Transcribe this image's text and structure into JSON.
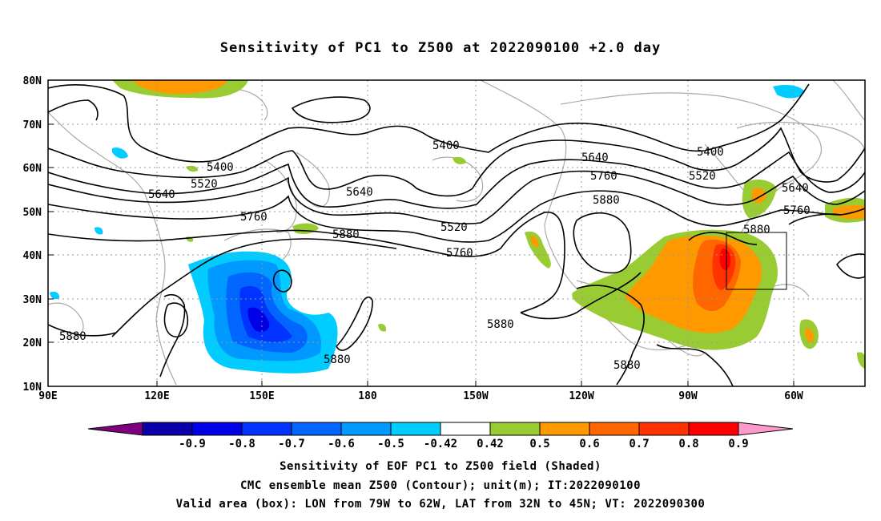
{
  "title": "Sensitivity of PC1 to Z500 at 2022090100 +2.0 day",
  "lat_labels": [
    "80N",
    "70N",
    "60N",
    "50N",
    "40N",
    "30N",
    "20N",
    "10N"
  ],
  "lon_labels": [
    "90E",
    "120E",
    "150E",
    "180",
    "150W",
    "120W",
    "90W",
    "60W"
  ],
  "contour_labels": [
    "5400",
    "5400",
    "5400",
    "5520",
    "5520",
    "5520",
    "5640",
    "5640",
    "5640",
    "5640",
    "5760",
    "5760",
    "5760",
    "5760",
    "5880",
    "5880",
    "5880",
    "5880",
    "5880",
    "5880",
    "5880"
  ],
  "colorbar": {
    "labels": [
      "-0.9",
      "-0.8",
      "-0.7",
      "-0.6",
      "-0.5",
      "-0.42",
      "0.42",
      "0.5",
      "0.6",
      "0.7",
      "0.8",
      "0.9"
    ],
    "colors": [
      "#7f007f",
      "#0a00aa",
      "#0000e6",
      "#0033ff",
      "#0066ff",
      "#0099ff",
      "#00ccff",
      "#ffffff",
      "#99cc33",
      "#ff9900",
      "#ff6600",
      "#ff3300",
      "#ff0000",
      "#ff99cc"
    ]
  },
  "footer": {
    "line1": "Sensitivity of EOF PC1 to Z500 field (Shaded)",
    "line2": "CMC ensemble mean Z500 (Contour); unit(m); IT:2022090100",
    "line3": "Valid area (box): LON from 79W to 62W, LAT from 32N to 45N; VT: 2022090300"
  },
  "valid_box": {
    "lon_from": "79W",
    "lon_to": "62W",
    "lat_from": "32N",
    "lat_to": "45N"
  }
}
